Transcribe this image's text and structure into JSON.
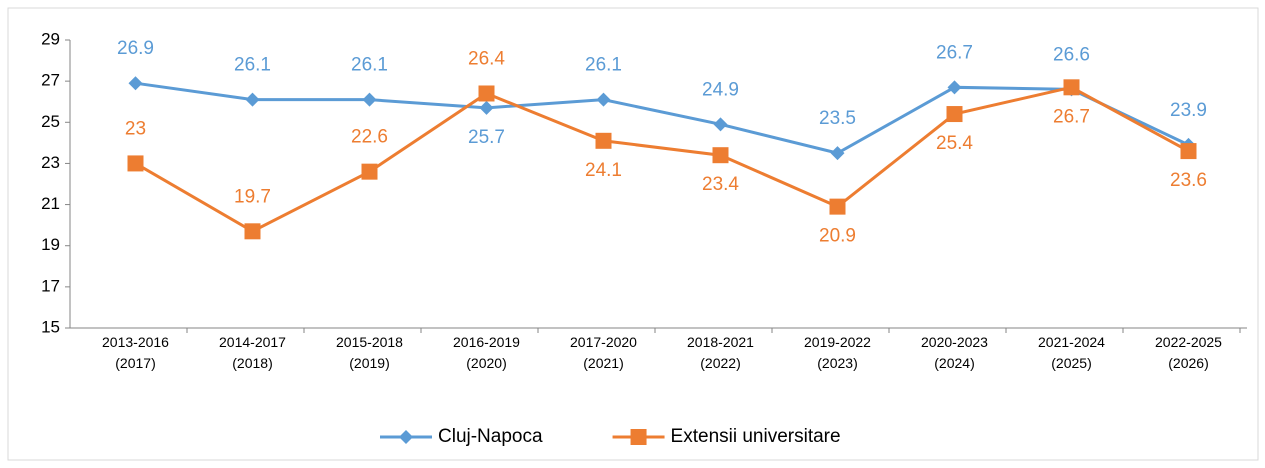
{
  "chart_data": {
    "type": "line",
    "categories": [
      "2013-2016\n(2017)",
      "2014-2017\n(2018)",
      "2015-2018\n(2019)",
      "2016-2019\n(2020)",
      "2017-2020\n(2021)",
      "2018-2021\n(2022)",
      "2019-2022\n(2023)",
      "2020-2023\n(2024)",
      "2021-2024\n(2025)",
      "2022-2025\n(2026)"
    ],
    "series": [
      {
        "name": "Cluj-Napoca",
        "color": "#5b9bd5",
        "marker": "diamond",
        "values": [
          26.9,
          26.1,
          26.1,
          25.7,
          26.1,
          24.9,
          23.5,
          26.7,
          26.6,
          23.9
        ]
      },
      {
        "name": "Extensii universitare",
        "color": "#ed7d31",
        "marker": "square",
        "values": [
          23,
          19.7,
          22.6,
          26.4,
          24.1,
          23.4,
          20.9,
          25.4,
          26.7,
          23.6
        ]
      }
    ],
    "ylim": [
      15,
      29
    ],
    "yticks": [
      15,
      17,
      19,
      21,
      23,
      25,
      27,
      29
    ],
    "legend": "bottom"
  }
}
